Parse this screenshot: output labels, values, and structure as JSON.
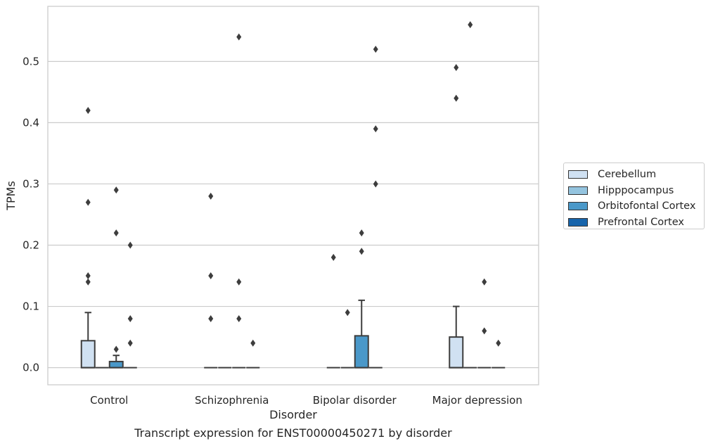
{
  "chart_data": {
    "type": "box",
    "title": "",
    "caption": "Transcript expression for ENST00000450271 by disorder",
    "xlabel": "Disorder",
    "ylabel": "TPMs",
    "ylim": [
      -0.028,
      0.59
    ],
    "yticks": [
      "0.0",
      "0.1",
      "0.2",
      "0.3",
      "0.4",
      "0.5"
    ],
    "grid": true,
    "legend_position": "right",
    "categories": [
      "Control",
      "Schizophrenia",
      "Bipolar disorder",
      "Major depression"
    ],
    "series": [
      {
        "name": "Cerebellum",
        "color": "#d0e1f2"
      },
      {
        "name": "Hipppocampus",
        "color": "#94c4df"
      },
      {
        "name": "Orbitofontal Cortex",
        "color": "#4a98c9"
      },
      {
        "name": "Prefrontal Cortex",
        "color": "#1764ab"
      }
    ],
    "boxes": [
      {
        "category": "Control",
        "series": "Cerebellum",
        "q1": 0.0,
        "median": 0.0,
        "q3": 0.044,
        "whisker_low": 0.0,
        "whisker_high": 0.09,
        "outliers": [
          0.27,
          0.15,
          0.14,
          0.42
        ]
      },
      {
        "category": "Control",
        "series": "Hipppocampus",
        "q1": 0.0,
        "median": 0.0,
        "q3": 0.0,
        "whisker_low": 0.0,
        "whisker_high": 0.0,
        "outliers": []
      },
      {
        "category": "Control",
        "series": "Orbitofontal Cortex",
        "q1": 0.0,
        "median": 0.0,
        "q3": 0.01,
        "whisker_low": 0.0,
        "whisker_high": 0.02,
        "outliers": [
          0.03,
          0.22,
          0.29
        ]
      },
      {
        "category": "Control",
        "series": "Prefrontal Cortex",
        "q1": 0.0,
        "median": 0.0,
        "q3": 0.0,
        "whisker_low": 0.0,
        "whisker_high": 0.0,
        "outliers": [
          0.2,
          0.08,
          0.04
        ]
      },
      {
        "category": "Schizophrenia",
        "series": "Cerebellum",
        "q1": 0.0,
        "median": 0.0,
        "q3": 0.0,
        "whisker_low": 0.0,
        "whisker_high": 0.0,
        "outliers": [
          0.28,
          0.15,
          0.08
        ]
      },
      {
        "category": "Schizophrenia",
        "series": "Hipppocampus",
        "q1": 0.0,
        "median": 0.0,
        "q3": 0.0,
        "whisker_low": 0.0,
        "whisker_high": 0.0,
        "outliers": []
      },
      {
        "category": "Schizophrenia",
        "series": "Orbitofontal Cortex",
        "q1": 0.0,
        "median": 0.0,
        "q3": 0.0,
        "whisker_low": 0.0,
        "whisker_high": 0.0,
        "outliers": [
          0.54,
          0.14,
          0.08
        ]
      },
      {
        "category": "Schizophrenia",
        "series": "Prefrontal Cortex",
        "q1": 0.0,
        "median": 0.0,
        "q3": 0.0,
        "whisker_low": 0.0,
        "whisker_high": 0.0,
        "outliers": [
          0.04
        ]
      },
      {
        "category": "Bipolar disorder",
        "series": "Cerebellum",
        "q1": 0.0,
        "median": 0.0,
        "q3": 0.0,
        "whisker_low": 0.0,
        "whisker_high": 0.0,
        "outliers": [
          0.18
        ]
      },
      {
        "category": "Bipolar disorder",
        "series": "Hipppocampus",
        "q1": 0.0,
        "median": 0.0,
        "q3": 0.0,
        "whisker_low": 0.0,
        "whisker_high": 0.0,
        "outliers": [
          0.09
        ]
      },
      {
        "category": "Bipolar disorder",
        "series": "Orbitofontal Cortex",
        "q1": 0.0,
        "median": 0.0,
        "q3": 0.052,
        "whisker_low": 0.0,
        "whisker_high": 0.11,
        "outliers": [
          0.19,
          0.22
        ]
      },
      {
        "category": "Bipolar disorder",
        "series": "Prefrontal Cortex",
        "q1": 0.0,
        "median": 0.0,
        "q3": 0.0,
        "whisker_low": 0.0,
        "whisker_high": 0.0,
        "outliers": [
          0.52,
          0.39,
          0.3
        ]
      },
      {
        "category": "Major depression",
        "series": "Cerebellum",
        "q1": 0.0,
        "median": 0.0,
        "q3": 0.05,
        "whisker_low": 0.0,
        "whisker_high": 0.1,
        "outliers": [
          0.49,
          0.44
        ]
      },
      {
        "category": "Major depression",
        "series": "Hipppocampus",
        "q1": 0.0,
        "median": 0.0,
        "q3": 0.0,
        "whisker_low": 0.0,
        "whisker_high": 0.0,
        "outliers": [
          0.56
        ]
      },
      {
        "category": "Major depression",
        "series": "Orbitofontal Cortex",
        "q1": 0.0,
        "median": 0.0,
        "q3": 0.0,
        "whisker_low": 0.0,
        "whisker_high": 0.0,
        "outliers": [
          0.14,
          0.06
        ]
      },
      {
        "category": "Major depression",
        "series": "Prefrontal Cortex",
        "q1": 0.0,
        "median": 0.0,
        "q3": 0.0,
        "whisker_low": 0.0,
        "whisker_high": 0.0,
        "outliers": [
          0.04
        ]
      }
    ]
  }
}
